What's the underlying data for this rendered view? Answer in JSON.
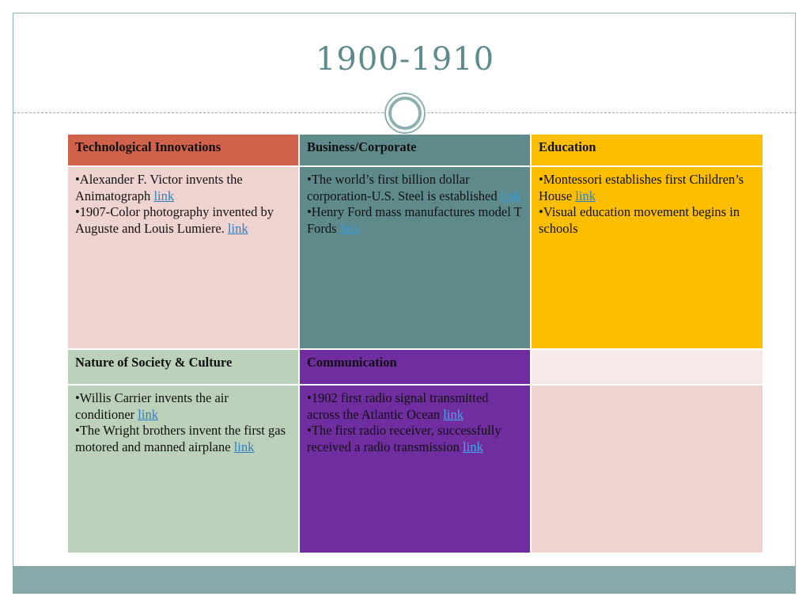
{
  "slide": {
    "title": "1900-1910"
  },
  "colors": {
    "tech_header": "#d0614b",
    "tech_body": "#efd3d1",
    "business": "#5f8a8b",
    "education": "#fdbe00",
    "society_header": "#bbd1b9",
    "society_body": "#bbd1b9",
    "communication": "#6f2da0",
    "empty_header": "#f7e9e8",
    "empty_body": "#efd3d1",
    "accent": "#5f8a8b"
  },
  "table": {
    "tech": {
      "header": "Technological Innovations",
      "items": [
        {
          "text": "•Alexander F. Victor invents the Animatograph ",
          "link": "link"
        },
        {
          "text": "•1907-Color photography invented by Auguste and Louis Lumiere. ",
          "link": "link"
        }
      ]
    },
    "business": {
      "header": "Business/Corporate",
      "items": [
        {
          "text": "•The world’s first billion dollar corporation-U.S. Steel is established ",
          "link": "link"
        },
        {
          "text": "•Henry Ford mass manufactures model T Fords ",
          "link": "link"
        }
      ]
    },
    "education": {
      "header": "Education",
      "items": [
        {
          "text": "•Montessori establishes first Children’s House ",
          "link": "link"
        },
        {
          "text": "•Visual education movement begins in schools",
          "link": ""
        }
      ]
    },
    "society": {
      "header": "Nature of Society & Culture",
      "items": [
        {
          "text": "•Willis Carrier invents the air conditioner ",
          "link": "link"
        },
        {
          "text": "•The Wright brothers invent the first gas motored and manned airplane ",
          "link": "link"
        }
      ]
    },
    "communication": {
      "header": "Communication",
      "items": [
        {
          "text": "•1902 first radio signal transmitted across the Atlantic Ocean ",
          "link": "link"
        },
        {
          "text": "•The first radio receiver, successfully received a radio transmission ",
          "link": "link"
        }
      ]
    }
  }
}
